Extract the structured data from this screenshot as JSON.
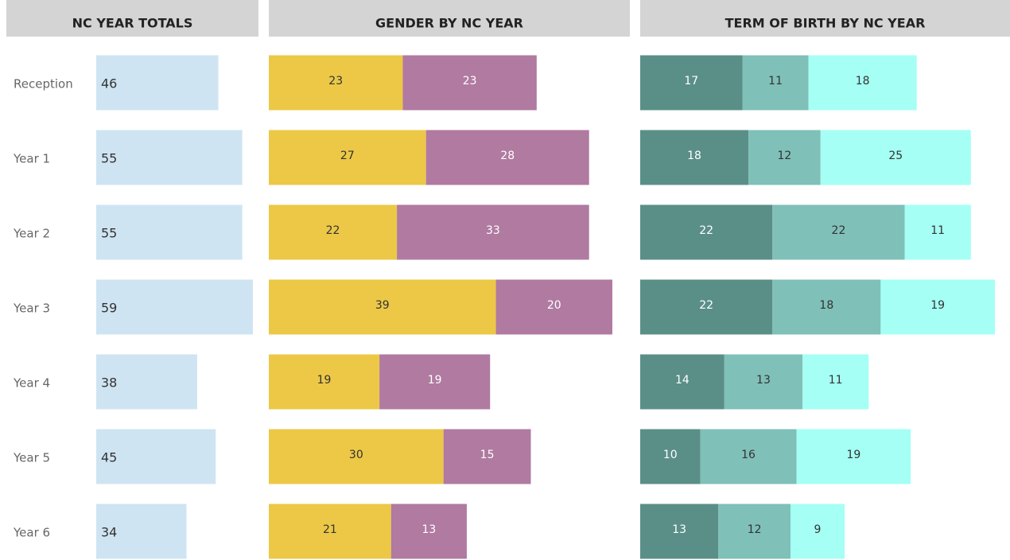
{
  "chart_data": [
    {
      "type": "bar",
      "title": "NC YEAR TOTALS",
      "categories": [
        "Reception",
        "Year 1",
        "Year 2",
        "Year 3",
        "Year 4",
        "Year 5",
        "Year 6"
      ],
      "label_position": "inside-start",
      "series": [
        {
          "color": "#cfe4f2",
          "label_color": "#333333",
          "values": [
            46,
            55,
            55,
            59,
            38,
            45,
            34
          ]
        }
      ]
    },
    {
      "type": "bar",
      "title": "GENDER BY NC YEAR",
      "stacked": true,
      "label_position": "center",
      "series": [
        {
          "color": "#ecc846",
          "label_color": "#333333",
          "values": [
            23,
            27,
            22,
            39,
            19,
            30,
            21
          ]
        },
        {
          "color": "#b07aa1",
          "label_color": "#ffffff",
          "values": [
            23,
            28,
            33,
            20,
            19,
            15,
            13
          ]
        }
      ]
    },
    {
      "type": "bar",
      "title": "TERM OF BIRTH BY NC YEAR",
      "stacked": true,
      "label_position": "center",
      "series": [
        {
          "color": "#5a8f88",
          "label_color": "#ffffff",
          "values": [
            17,
            18,
            22,
            22,
            14,
            10,
            13
          ]
        },
        {
          "color": "#7fc0b8",
          "label_color": "#333333",
          "values": [
            11,
            12,
            22,
            18,
            13,
            16,
            12
          ]
        },
        {
          "color": "#a5fff4",
          "label_color": "#333333",
          "values": [
            18,
            25,
            11,
            19,
            11,
            19,
            9
          ]
        }
      ]
    }
  ]
}
